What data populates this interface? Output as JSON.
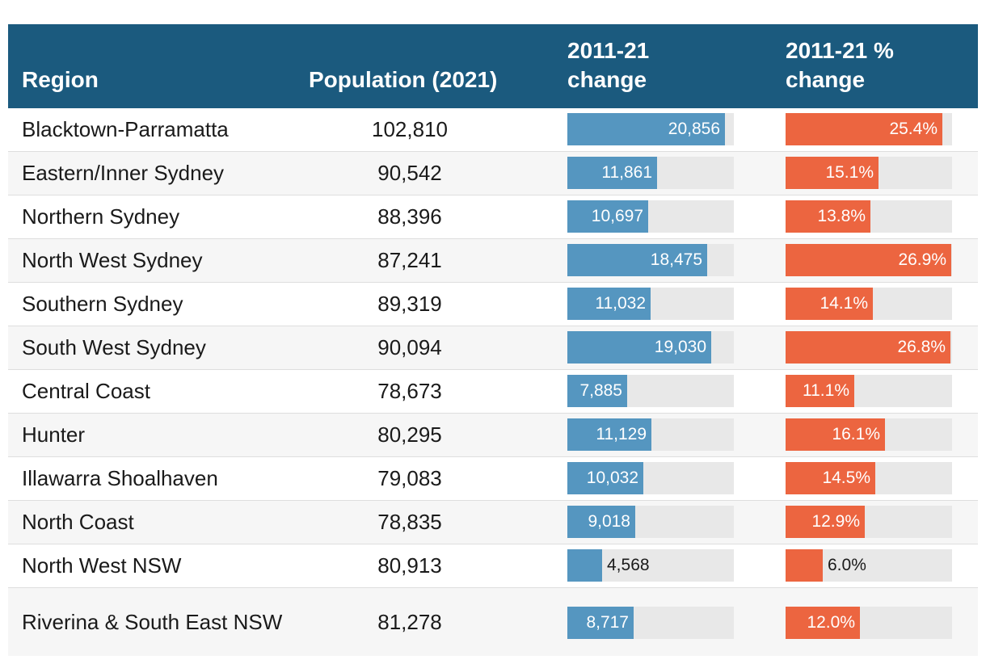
{
  "chart_data": {
    "type": "table",
    "columns": [
      "Region",
      "Population (2021)",
      "2011-21 change",
      "2011-21 % change"
    ],
    "colors": {
      "header": "#1b5a7e",
      "change_bar": "#5596c0",
      "pct_bar": "#ec6540",
      "track": "#e8e8e8"
    },
    "change_max": 22000,
    "pct_max": 27.0,
    "rows": [
      {
        "region": "Blacktown-Parramatta",
        "population": "102,810",
        "change": 20856,
        "change_label": "20,856",
        "pct": 25.4,
        "pct_label": "25.4%"
      },
      {
        "region": "Eastern/Inner Sydney",
        "population": "90,542",
        "change": 11861,
        "change_label": "11,861",
        "pct": 15.1,
        "pct_label": "15.1%"
      },
      {
        "region": "Northern Sydney",
        "population": "88,396",
        "change": 10697,
        "change_label": "10,697",
        "pct": 13.8,
        "pct_label": "13.8%"
      },
      {
        "region": "North West Sydney",
        "population": "87,241",
        "change": 18475,
        "change_label": "18,475",
        "pct": 26.9,
        "pct_label": "26.9%"
      },
      {
        "region": "Southern Sydney",
        "population": "89,319",
        "change": 11032,
        "change_label": "11,032",
        "pct": 14.1,
        "pct_label": "14.1%"
      },
      {
        "region": "South West Sydney",
        "population": "90,094",
        "change": 19030,
        "change_label": "19,030",
        "pct": 26.8,
        "pct_label": "26.8%"
      },
      {
        "region": "Central Coast",
        "population": "78,673",
        "change": 7885,
        "change_label": "7,885",
        "pct": 11.1,
        "pct_label": "11.1%"
      },
      {
        "region": "Hunter",
        "population": "80,295",
        "change": 11129,
        "change_label": "11,129",
        "pct": 16.1,
        "pct_label": "16.1%"
      },
      {
        "region": "Illawarra Shoalhaven",
        "population": "79,083",
        "change": 10032,
        "change_label": "10,032",
        "pct": 14.5,
        "pct_label": "14.5%"
      },
      {
        "region": "North Coast",
        "population": "78,835",
        "change": 9018,
        "change_label": "9,018",
        "pct": 12.9,
        "pct_label": "12.9%"
      },
      {
        "region": "North West NSW",
        "population": "80,913",
        "change": 4568,
        "change_label": "4,568",
        "pct": 6.0,
        "pct_label": "6.0%"
      },
      {
        "region": "Riverina & South East NSW",
        "population": "81,278",
        "change": 8717,
        "change_label": "8,717",
        "pct": 12.0,
        "pct_label": "12.0%"
      }
    ]
  }
}
